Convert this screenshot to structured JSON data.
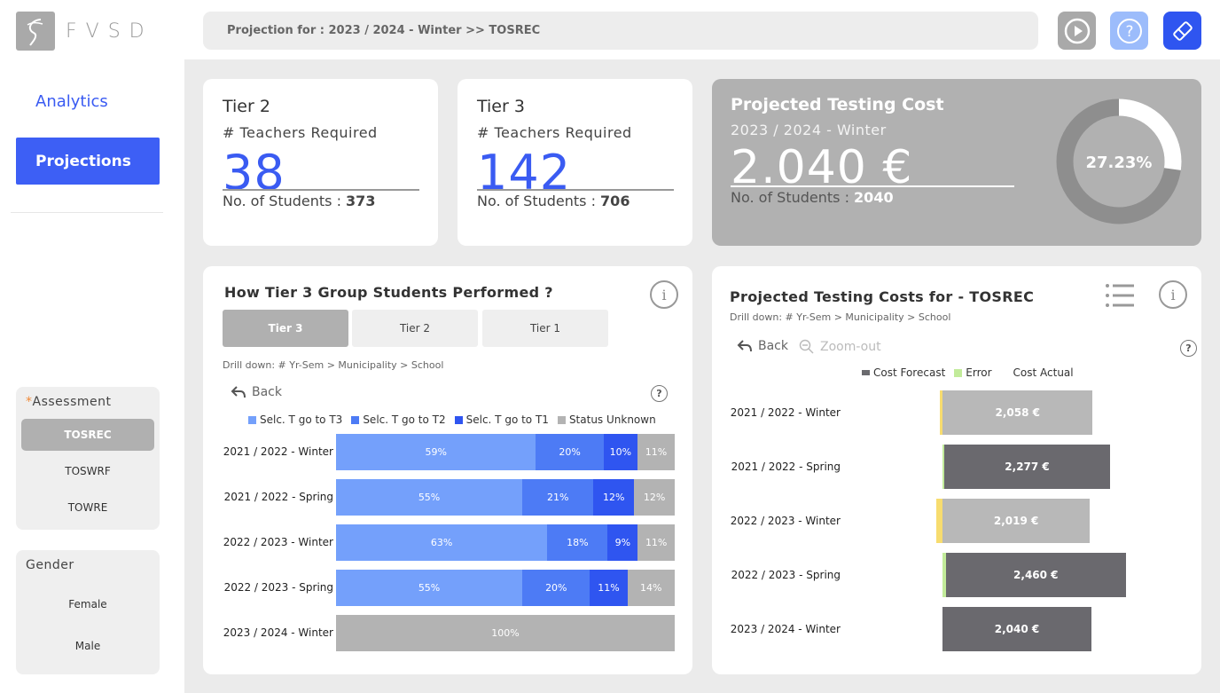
{
  "brand": {
    "logo_text": "FVSD"
  },
  "nav": {
    "analytics": "Analytics",
    "projections": "Projections"
  },
  "filters": {
    "assessment": {
      "title": "Assessment",
      "required_mark": "*",
      "options": [
        "TOSREC",
        "TOSWRF",
        "TOWRE"
      ],
      "selected": "TOSREC"
    },
    "gender": {
      "title": "Gender",
      "options": [
        "Female",
        "Male"
      ]
    }
  },
  "header": {
    "breadcrumb": "Projection for : 2023 / 2024 - Winter >> TOSREC",
    "icons": [
      "play-icon",
      "help-icon",
      "eraser-icon"
    ]
  },
  "kpis": [
    {
      "title": "Tier 2",
      "subtitle": "# Teachers Required",
      "value": "38",
      "students_label": "No. of Students : ",
      "students": "373"
    },
    {
      "title": "Tier 3",
      "subtitle": "# Teachers Required",
      "value": "142",
      "students_label": "No. of Students : ",
      "students": "706"
    }
  ],
  "cost": {
    "title": "Projected Testing Cost",
    "period": "2023 / 2024 - Winter",
    "value": "2.040 €",
    "students_label": "No. of Students : ",
    "students": "2040",
    "donut_label": "27.23%",
    "donut_fraction": 0.2723
  },
  "tier_panel": {
    "title": "How Tier 3 Group Students Performed ?",
    "tabs": [
      "Tier 3",
      "Tier 2",
      "Tier 1"
    ],
    "active_tab": "Tier 3",
    "drill": "Drill down: # Yr-Sem >  Municipality > School",
    "back": "Back",
    "legend": [
      {
        "label": "Selc. T go to T3",
        "color": "#74a0fb"
      },
      {
        "label": "Selc. T go to T2",
        "color": "#4d7bf5"
      },
      {
        "label": "Selc. T go to T1",
        "color": "#2f55f0"
      },
      {
        "label": "Status Unknown",
        "color": "#b3b3b3"
      }
    ]
  },
  "costs_panel": {
    "title": "Projected Testing Costs for - TOSREC",
    "drill": "Drill down: # Yr-Sem >  Municipality > School",
    "back": "Back",
    "zoom_out": "Zoom-out",
    "legend": [
      {
        "label": "Cost Forecast",
        "color": "#6a6a6e"
      },
      {
        "label": "Error",
        "color": "#c2eb9a"
      },
      {
        "label": "Cost Actual",
        "color": ""
      }
    ]
  },
  "chart_data": [
    {
      "type": "bar",
      "orientation": "horizontal",
      "stacked": true,
      "categories": [
        "2021 / 2022 - Winter",
        "2021 / 2022 - Spring",
        "2022 / 2023 - Winter",
        "2022 / 2023 - Spring",
        "2023 / 2024 - Winter"
      ],
      "series": [
        {
          "name": "Selc. T go to T3",
          "values": [
            59,
            55,
            63,
            55,
            0
          ]
        },
        {
          "name": "Selc. T go to T2",
          "values": [
            20,
            21,
            18,
            20,
            0
          ]
        },
        {
          "name": "Selc. T go to T1",
          "values": [
            10,
            12,
            9,
            11,
            0
          ]
        },
        {
          "name": "Status Unknown",
          "values": [
            11,
            12,
            11,
            14,
            100
          ]
        }
      ],
      "value_labels": [
        [
          "59%",
          "20%",
          "10%",
          "11%"
        ],
        [
          "55%",
          "21%",
          "12%",
          "12%"
        ],
        [
          "63%",
          "18%",
          "9%",
          "11%"
        ],
        [
          "55%",
          "20%",
          "11%",
          "14%"
        ],
        [
          "",
          "",
          "",
          "100%"
        ]
      ]
    },
    {
      "type": "bar",
      "orientation": "horizontal",
      "categories": [
        "2021 / 2022 - Winter",
        "2021 / 2022 - Spring",
        "2022 / 2023 - Winter",
        "2022 / 2023 - Spring",
        "2023 / 2024 - Winter"
      ],
      "series": [
        {
          "name": "Cost",
          "values": [
            2058,
            2277,
            2019,
            2460,
            2040
          ],
          "labels": [
            "2,058 €",
            "2,277 €",
            "2,019 €",
            "2,460 €",
            "2,040 €"
          ]
        }
      ],
      "bar_colors": [
        "#b8b8b8",
        "#6a696e",
        "#b8b8b8",
        "#6a696e",
        "#6a696e"
      ],
      "error_colors": [
        "#f7dc6f",
        "#c2eb9a",
        "#f7dc6f",
        "#c2eb9a",
        ""
      ],
      "error_span": [
        [
          -220,
          0
        ],
        [
          0,
          120
        ],
        [
          -440,
          0
        ],
        [
          0,
          270
        ],
        [
          0,
          0
        ]
      ]
    }
  ]
}
